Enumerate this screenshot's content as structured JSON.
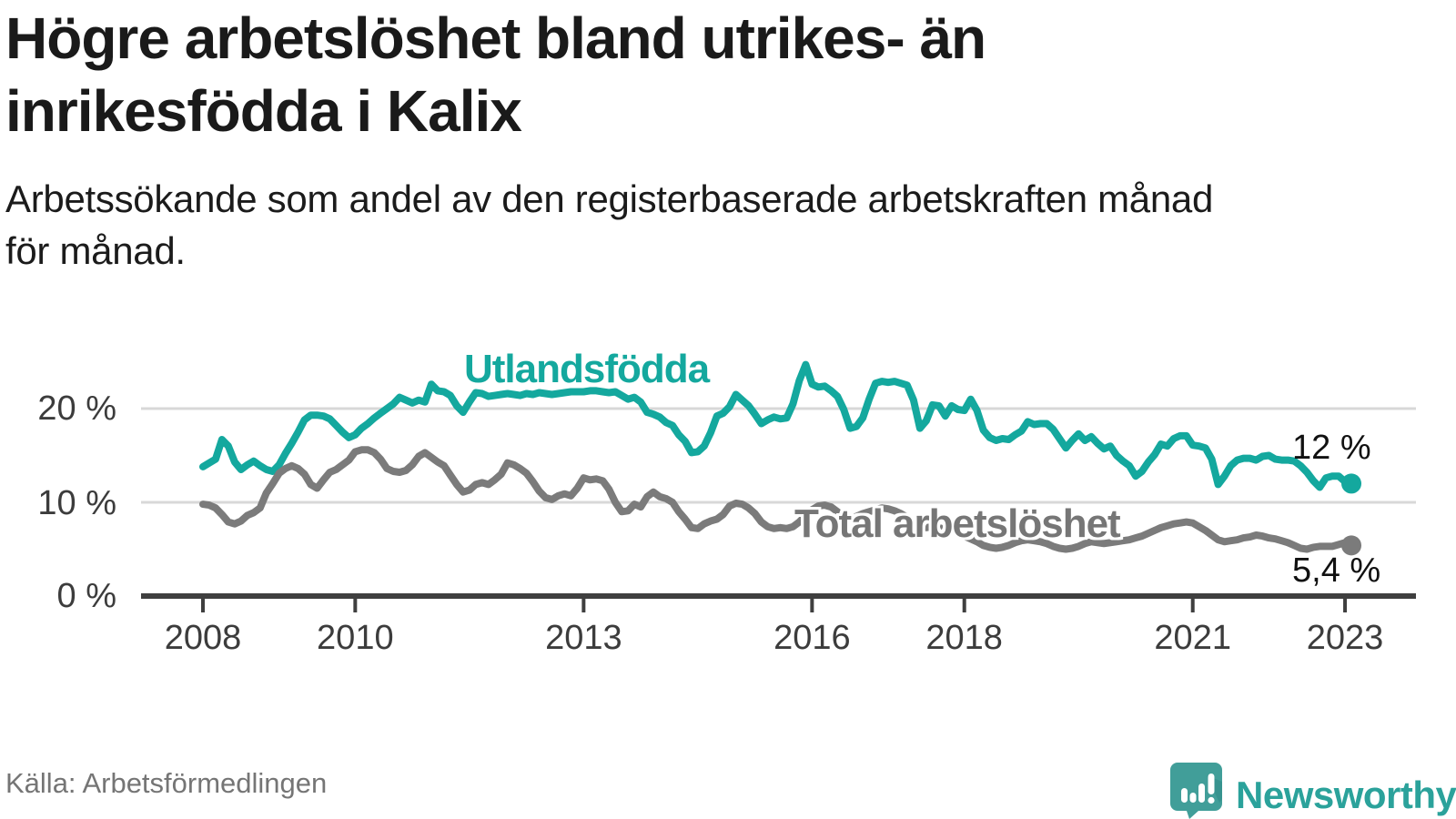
{
  "header": {
    "title_line1": "Högre arbetslöshet bland utrikes- än",
    "title_line2": "inrikesfödda i Kalix",
    "subtitle_line1": "Arbetssökande som andel av den registerbaserade arbetskraften månad",
    "subtitle_line2": "för månad."
  },
  "chart_data": {
    "type": "line",
    "title": "Högre arbetslöshet bland utrikes- än inrikesfödda i Kalix",
    "subtitle": "Arbetssökande som andel av den registerbaserade arbetskraften månad för månad.",
    "unit": "%",
    "x_interval": "monthly",
    "x_start_year": 2008,
    "x_end": "2023-02",
    "x_tick_years": [
      2008,
      2010,
      2013,
      2016,
      2018,
      2021,
      2023
    ],
    "y_axis": {
      "max": 27,
      "ticks": [
        {
          "value": 0,
          "label": "0 %"
        },
        {
          "value": 10,
          "label": "10 %"
        },
        {
          "value": 20,
          "label": "20 %"
        }
      ]
    },
    "grid": "horizontal",
    "legend_position": "inline-labels",
    "series": [
      {
        "name": "Utlandsfödda",
        "color": "#14a89e",
        "end_label": "12 %",
        "end_value": 12,
        "values": [
          13.8,
          14.2,
          14.6,
          16.7,
          16.0,
          14.3,
          13.5,
          14.0,
          14.4,
          13.9,
          13.5,
          13.3,
          14.0,
          15.2,
          16.3,
          17.5,
          18.8,
          19.3,
          19.3,
          19.2,
          18.9,
          18.2,
          17.5,
          16.9,
          17.2,
          17.9,
          18.4,
          19.0,
          19.5,
          20.0,
          20.5,
          21.2,
          20.9,
          20.6,
          20.9,
          20.7,
          22.6,
          21.9,
          21.8,
          21.4,
          20.3,
          19.6,
          20.7,
          21.7,
          21.6,
          21.3,
          21.4,
          21.5,
          21.6,
          21.5,
          21.4,
          21.6,
          21.5,
          21.7,
          21.6,
          21.5,
          21.6,
          21.7,
          21.8,
          21.8,
          21.8,
          21.9,
          21.9,
          21.8,
          21.7,
          21.8,
          21.4,
          21.0,
          21.2,
          20.7,
          19.6,
          19.4,
          19.1,
          18.5,
          18.2,
          17.2,
          16.5,
          15.3,
          15.4,
          16.0,
          17.4,
          19.2,
          19.5,
          20.2,
          21.5,
          20.9,
          20.3,
          19.4,
          18.4,
          18.8,
          19.1,
          18.9,
          19.0,
          20.5,
          23.0,
          24.7,
          22.6,
          22.3,
          22.4,
          21.9,
          21.3,
          19.9,
          17.9,
          18.1,
          19.0,
          21.0,
          22.7,
          22.9,
          22.8,
          22.9,
          22.7,
          22.5,
          20.9,
          17.9,
          18.7,
          20.4,
          20.3,
          19.2,
          20.3,
          19.9,
          19.8,
          21.0,
          19.8,
          17.7,
          16.9,
          16.6,
          16.8,
          16.7,
          17.2,
          17.6,
          18.6,
          18.3,
          18.4,
          18.4,
          17.8,
          16.8,
          15.8,
          16.6,
          17.3,
          16.6,
          17.0,
          16.3,
          15.7,
          16.0,
          15.0,
          14.4,
          13.9,
          12.8,
          13.3,
          14.3,
          15.1,
          16.2,
          16.0,
          16.8,
          17.1,
          17.1,
          16.1,
          16.0,
          15.8,
          14.6,
          11.9,
          12.8,
          13.9,
          14.5,
          14.7,
          14.7,
          14.5,
          14.9,
          15.0,
          14.6,
          14.5,
          14.5,
          14.4,
          13.9,
          13.2,
          12.3,
          11.6,
          12.6,
          12.8,
          12.8,
          12.2,
          12.0
        ]
      },
      {
        "name": "Total arbetslöshet",
        "color": "#7b7b7b",
        "end_label": "5,4 %",
        "end_value": 5.4,
        "values": [
          9.8,
          9.7,
          9.4,
          8.7,
          7.9,
          7.7,
          8.0,
          8.6,
          8.9,
          9.4,
          11.0,
          12.0,
          13.1,
          13.6,
          13.9,
          13.6,
          13.0,
          11.9,
          11.5,
          12.4,
          13.2,
          13.5,
          14.0,
          14.5,
          15.4,
          15.6,
          15.6,
          15.3,
          14.6,
          13.6,
          13.3,
          13.2,
          13.4,
          14.0,
          14.9,
          15.3,
          14.8,
          14.3,
          13.9,
          12.9,
          11.9,
          11.1,
          11.3,
          11.9,
          12.1,
          11.9,
          12.4,
          13.0,
          14.2,
          14.0,
          13.6,
          13.1,
          12.2,
          11.2,
          10.5,
          10.3,
          10.7,
          10.9,
          10.7,
          11.5,
          12.6,
          12.4,
          12.5,
          12.3,
          11.4,
          10.0,
          9.0,
          9.1,
          9.8,
          9.5,
          10.6,
          11.1,
          10.6,
          10.4,
          10.0,
          9.0,
          8.2,
          7.3,
          7.2,
          7.7,
          8.0,
          8.2,
          8.7,
          9.6,
          9.9,
          9.8,
          9.4,
          8.8,
          7.9,
          7.4,
          7.2,
          7.3,
          7.2,
          7.4,
          7.9,
          8.6,
          9.2,
          9.6,
          9.7,
          9.5,
          9.0,
          8.5,
          8.3,
          8.5,
          8.8,
          9.0,
          9.2,
          9.4,
          9.3,
          9.1,
          8.8,
          8.4,
          7.9,
          7.5,
          7.3,
          7.4,
          7.3,
          7.1,
          6.9,
          6.7,
          6.4,
          6.1,
          5.8,
          5.4,
          5.2,
          5.1,
          5.2,
          5.4,
          5.7,
          5.9,
          6.0,
          5.9,
          5.8,
          5.6,
          5.3,
          5.1,
          5.0,
          5.1,
          5.3,
          5.6,
          5.8,
          5.7,
          5.6,
          5.7,
          5.8,
          5.9,
          6.0,
          6.2,
          6.4,
          6.7,
          7.0,
          7.3,
          7.5,
          7.7,
          7.8,
          7.9,
          7.8,
          7.4,
          7.0,
          6.5,
          6.0,
          5.8,
          5.9,
          6.0,
          6.2,
          6.3,
          6.5,
          6.4,
          6.2,
          6.1,
          5.9,
          5.7,
          5.4,
          5.1,
          5.0,
          5.2,
          5.3,
          5.3,
          5.3,
          5.5,
          5.7,
          5.4
        ]
      }
    ]
  },
  "colors": {
    "accent_teal": "#14a89e",
    "line_gray": "#7b7b7b",
    "axis": "#3f3f3f",
    "gridline": "#d8d8d8",
    "brand_teal": "#2ba29b",
    "logo_pin": "#419e99"
  },
  "footer": {
    "source": "Källa: Arbetsförmedlingen",
    "brand": "Newsworthy"
  }
}
